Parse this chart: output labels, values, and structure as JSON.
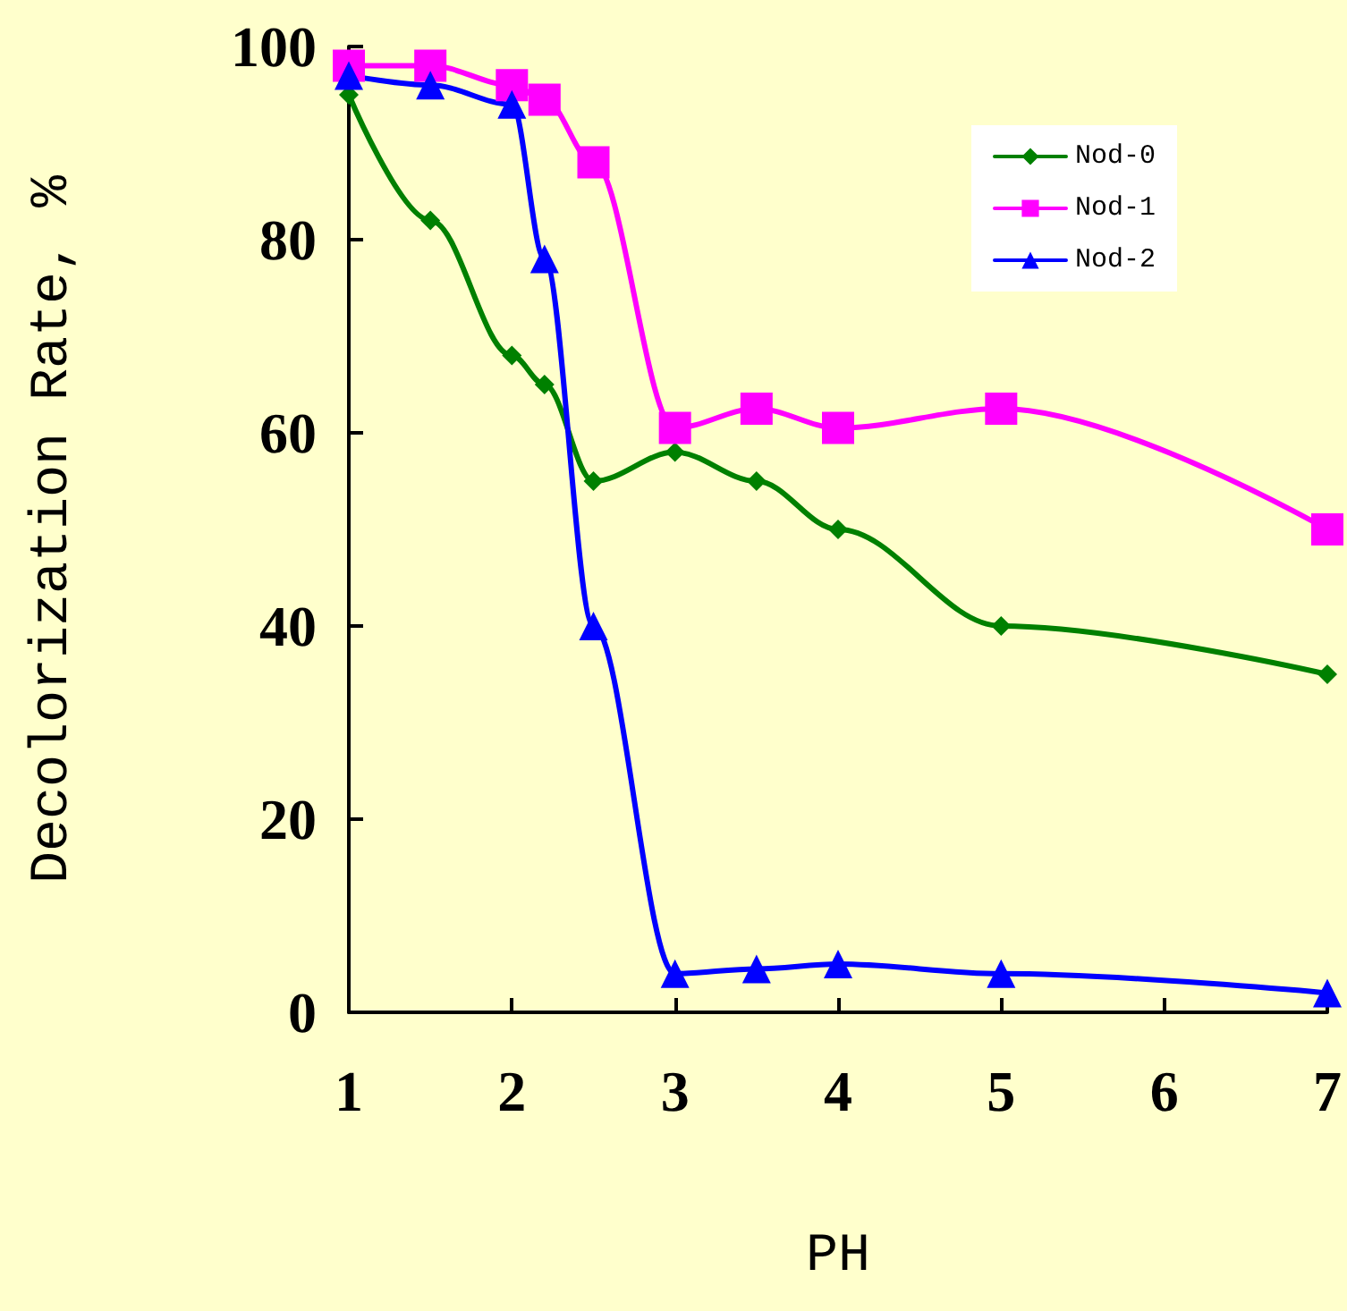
{
  "chart_data": {
    "type": "line",
    "xlabel": "PH",
    "ylabel": "Decolorization Rate, %",
    "x": [
      1,
      1.5,
      2,
      2.2,
      2.5,
      3,
      3.5,
      4,
      5,
      7
    ],
    "series": [
      {
        "name": "Nod-0",
        "color": "#008000",
        "marker": "diamond",
        "values": [
          95,
          82,
          68,
          65,
          55,
          58,
          55,
          50,
          40,
          35
        ]
      },
      {
        "name": "Nod-1",
        "color": "#ff00ff",
        "marker": "square",
        "values": [
          98,
          98,
          96,
          94.5,
          88,
          60.5,
          62.5,
          60.5,
          62.5,
          50
        ]
      },
      {
        "name": "Nod-2",
        "color": "#0000ff",
        "marker": "triangle",
        "values": [
          97,
          96,
          94,
          78,
          40,
          4,
          4.5,
          5,
          4,
          2
        ]
      }
    ],
    "xlim": [
      1,
      7
    ],
    "xticks": [
      1,
      2,
      3,
      4,
      5,
      6,
      7
    ],
    "ylim": [
      0,
      100
    ],
    "yticks": [
      0,
      20,
      40,
      60,
      80,
      100
    ],
    "grid": false,
    "legend": "top right"
  }
}
